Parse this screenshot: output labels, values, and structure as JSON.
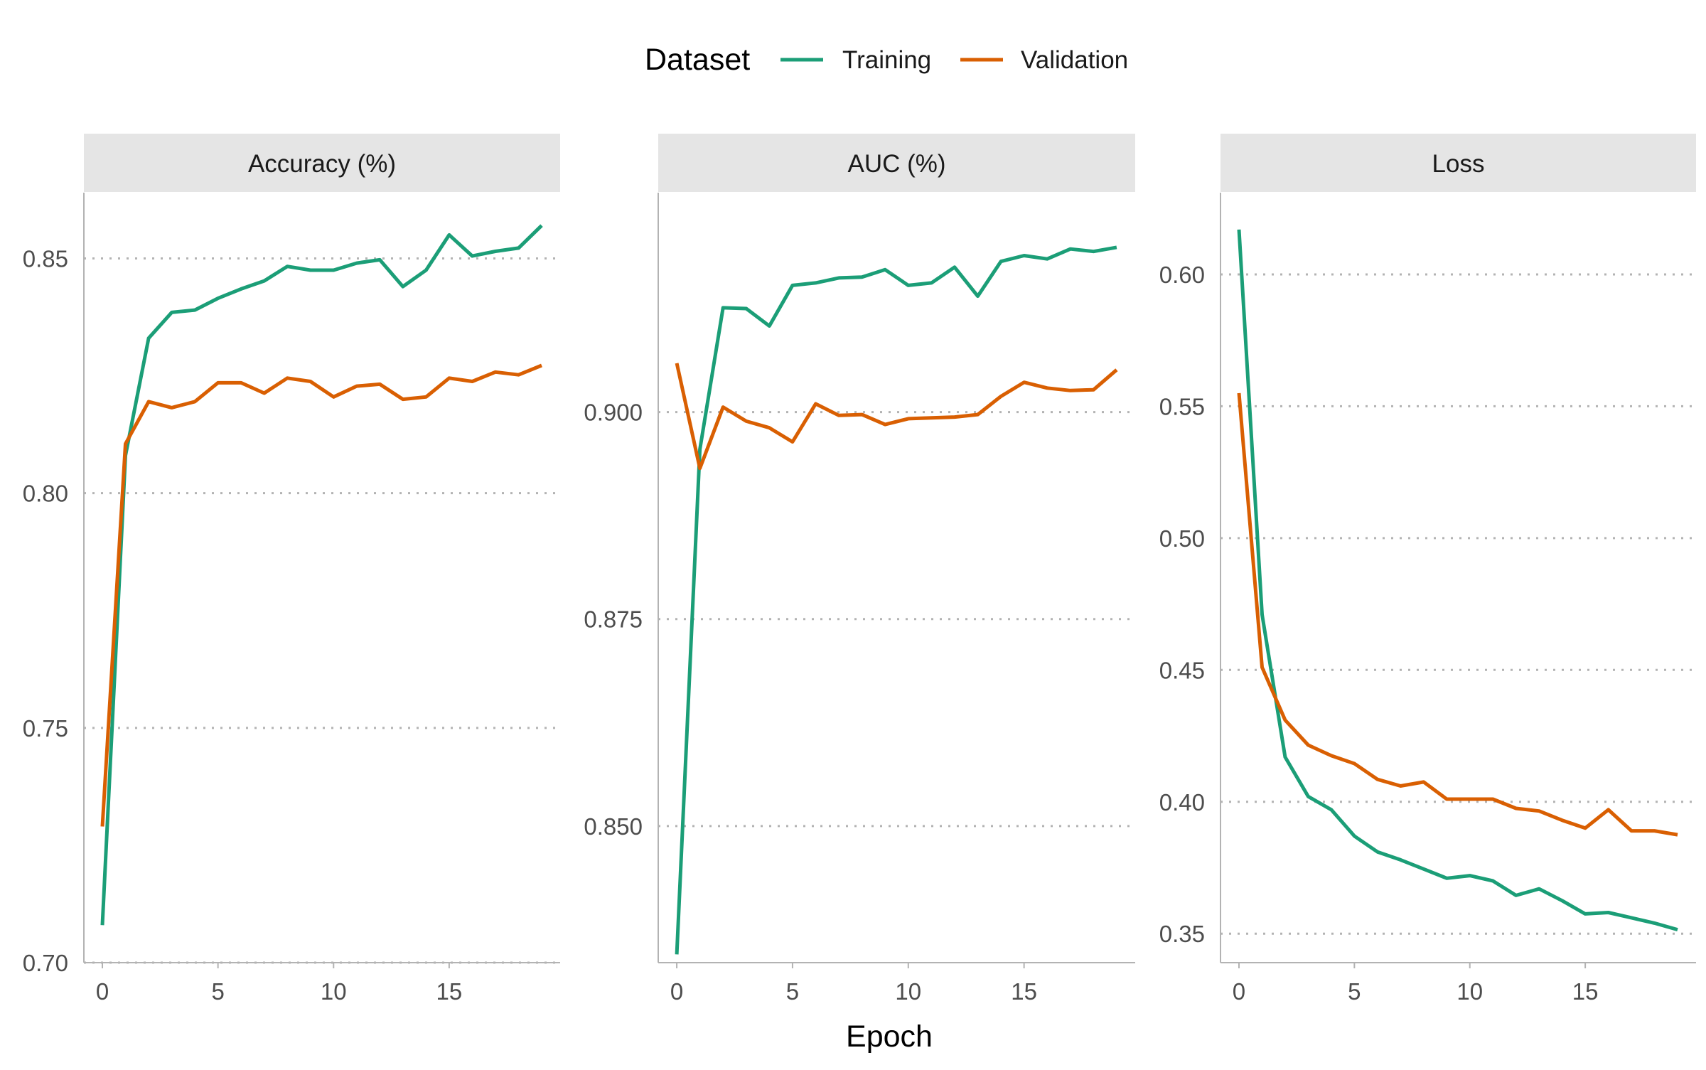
{
  "legend": {
    "title": "Dataset",
    "items": [
      {
        "label": "Training",
        "color": "#1b9e77"
      },
      {
        "label": "Validation",
        "color": "#d95f02"
      }
    ]
  },
  "xlabel": "Epoch",
  "chart_data": [
    {
      "type": "line",
      "title": "Accuracy (%)",
      "xlim": [
        -0.8,
        19.8
      ],
      "ylim": [
        0.7,
        0.864
      ],
      "yticks": [
        0.7,
        0.75,
        0.8,
        0.85
      ],
      "ytick_labels": [
        "0.70",
        "0.75",
        "0.80",
        "0.85"
      ],
      "xticks": [
        0,
        5,
        10,
        15
      ],
      "xtick_labels": [
        "0",
        "5",
        "10",
        "15"
      ],
      "grid": "horizontal dotted",
      "legend": "top",
      "series": [
        {
          "name": "Training",
          "x": [
            0,
            1,
            2,
            3,
            4,
            5,
            6,
            7,
            8,
            9,
            10,
            11,
            12,
            13,
            14,
            15,
            16,
            17,
            18,
            19
          ],
          "values": [
            0.708,
            0.808,
            0.833,
            0.8385,
            0.839,
            0.8415,
            0.8435,
            0.8452,
            0.8483,
            0.8475,
            0.8475,
            0.849,
            0.8497,
            0.844,
            0.8475,
            0.855,
            0.8505,
            0.8515,
            0.8522,
            0.857
          ]
        },
        {
          "name": "Validation",
          "x": [
            0,
            1,
            2,
            3,
            4,
            5,
            6,
            7,
            8,
            9,
            10,
            11,
            12,
            13,
            14,
            15,
            16,
            17,
            18,
            19
          ],
          "values": [
            0.729,
            0.8105,
            0.8195,
            0.8182,
            0.8195,
            0.8235,
            0.8235,
            0.8213,
            0.8245,
            0.8238,
            0.8205,
            0.8228,
            0.8232,
            0.82,
            0.8205,
            0.8245,
            0.8238,
            0.8258,
            0.8252,
            0.8272
          ]
        }
      ]
    },
    {
      "type": "line",
      "title": "AUC (%)",
      "xlim": [
        -0.8,
        19.8
      ],
      "ylim": [
        0.8335,
        0.9265
      ],
      "yticks": [
        0.85,
        0.875,
        0.9
      ],
      "ytick_labels": [
        "0.850",
        "0.875",
        "0.900"
      ],
      "xticks": [
        0,
        5,
        10,
        15
      ],
      "xtick_labels": [
        "0",
        "5",
        "10",
        "15"
      ],
      "grid": "horizontal dotted",
      "legend": "top",
      "series": [
        {
          "name": "Training",
          "x": [
            0,
            1,
            2,
            3,
            4,
            5,
            6,
            7,
            8,
            9,
            10,
            11,
            12,
            13,
            14,
            15,
            16,
            17,
            18,
            19
          ],
          "values": [
            0.8345,
            0.8955,
            0.9126,
            0.9125,
            0.9104,
            0.9153,
            0.9156,
            0.9162,
            0.9163,
            0.9172,
            0.9153,
            0.9156,
            0.9175,
            0.914,
            0.9182,
            0.9189,
            0.9185,
            0.9197,
            0.9194,
            0.9199
          ]
        },
        {
          "name": "Validation",
          "x": [
            0,
            1,
            2,
            3,
            4,
            5,
            6,
            7,
            8,
            9,
            10,
            11,
            12,
            13,
            14,
            15,
            16,
            17,
            18,
            19
          ],
          "values": [
            0.9059,
            0.8932,
            0.9006,
            0.8989,
            0.8981,
            0.8964,
            0.901,
            0.8996,
            0.8997,
            0.8985,
            0.8992,
            0.8993,
            0.8994,
            0.8997,
            0.9019,
            0.9036,
            0.9029,
            0.9026,
            0.9027,
            0.9051
          ]
        }
      ]
    },
    {
      "type": "line",
      "title": "Loss",
      "xlim": [
        -0.8,
        19.8
      ],
      "ylim": [
        0.339,
        0.631
      ],
      "yticks": [
        0.35,
        0.4,
        0.45,
        0.5,
        0.55,
        0.6
      ],
      "ytick_labels": [
        "0.35",
        "0.40",
        "0.45",
        "0.50",
        "0.55",
        "0.60"
      ],
      "xticks": [
        0,
        5,
        10,
        15
      ],
      "xtick_labels": [
        "0",
        "5",
        "10",
        "15"
      ],
      "grid": "horizontal dotted",
      "legend": "top",
      "series": [
        {
          "name": "Training",
          "x": [
            0,
            1,
            2,
            3,
            4,
            5,
            6,
            7,
            8,
            9,
            10,
            11,
            12,
            13,
            14,
            15,
            16,
            17,
            18,
            19
          ],
          "values": [
            0.617,
            0.471,
            0.417,
            0.402,
            0.397,
            0.387,
            0.381,
            0.378,
            0.3745,
            0.371,
            0.372,
            0.37,
            0.3645,
            0.367,
            0.3625,
            0.3575,
            0.358,
            0.356,
            0.354,
            0.3515
          ]
        },
        {
          "name": "Validation",
          "x": [
            0,
            1,
            2,
            3,
            4,
            5,
            6,
            7,
            8,
            9,
            10,
            11,
            12,
            13,
            14,
            15,
            16,
            17,
            18,
            19
          ],
          "values": [
            0.555,
            0.451,
            0.431,
            0.4215,
            0.4175,
            0.4145,
            0.4085,
            0.406,
            0.4075,
            0.401,
            0.401,
            0.401,
            0.3975,
            0.3965,
            0.393,
            0.39,
            0.397,
            0.389,
            0.389,
            0.3875
          ]
        }
      ]
    }
  ]
}
